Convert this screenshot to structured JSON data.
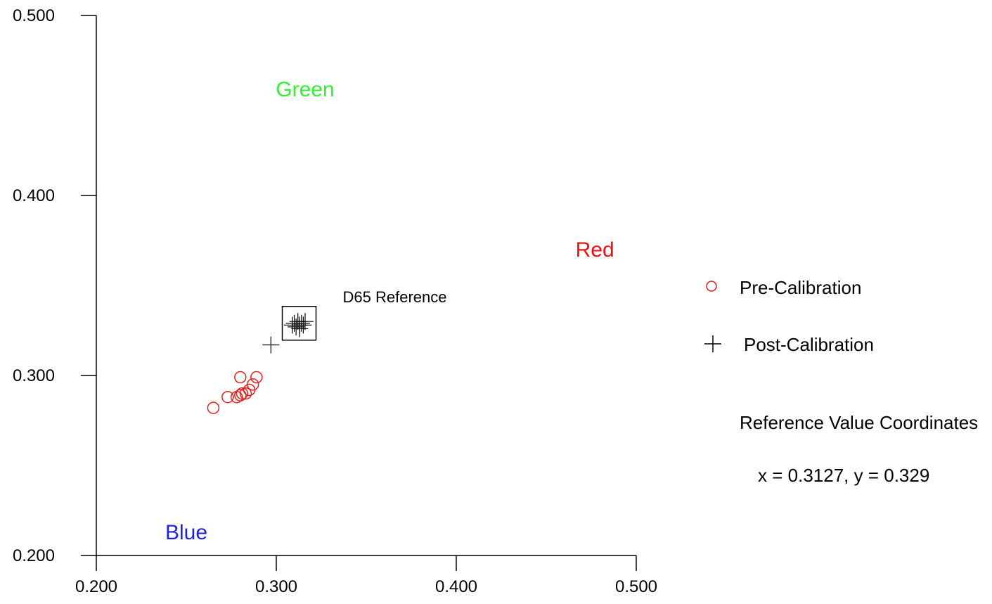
{
  "chart_data": {
    "type": "scatter",
    "xlim": [
      0.2,
      0.5
    ],
    "ylim": [
      0.2,
      0.5
    ],
    "x_ticks": [
      "0.200",
      "0.300",
      "0.400",
      "0.500"
    ],
    "y_ticks": [
      "0.200",
      "0.300",
      "0.400",
      "0.500"
    ],
    "grid": false,
    "legend_position": "right",
    "region_labels": [
      {
        "text": "Green",
        "x": 0.316,
        "y": 0.455,
        "color": "#33ee33"
      },
      {
        "text": "Red",
        "x": 0.477,
        "y": 0.366,
        "color": "#ee1111"
      },
      {
        "text": "Blue",
        "x": 0.25,
        "y": 0.209,
        "color": "#2222dd"
      }
    ],
    "annotation": {
      "text": "D65 Reference",
      "x": 0.3127,
      "y": 0.329
    },
    "series": [
      {
        "name": "Pre-Calibration",
        "marker": "circle",
        "color": "#e02020",
        "x": [
          0.265,
          0.273,
          0.278,
          0.28,
          0.281,
          0.283,
          0.285,
          0.287,
          0.289,
          0.28
        ],
        "y": [
          0.282,
          0.288,
          0.288,
          0.289,
          0.29,
          0.29,
          0.292,
          0.295,
          0.299,
          0.299
        ]
      },
      {
        "name": "Post-Calibration",
        "marker": "plus",
        "color": "#000000",
        "x": [
          0.297,
          0.309,
          0.31,
          0.311,
          0.312,
          0.313,
          0.313,
          0.314,
          0.315,
          0.316
        ],
        "y": [
          0.317,
          0.328,
          0.329,
          0.327,
          0.33,
          0.328,
          0.326,
          0.329,
          0.328,
          0.33
        ]
      }
    ],
    "reference_box": {
      "x": 0.3127,
      "y": 0.329
    }
  },
  "reference_info": {
    "heading": "Reference Value Coordinates",
    "values": "x = 0.3127, y = 0.329"
  }
}
